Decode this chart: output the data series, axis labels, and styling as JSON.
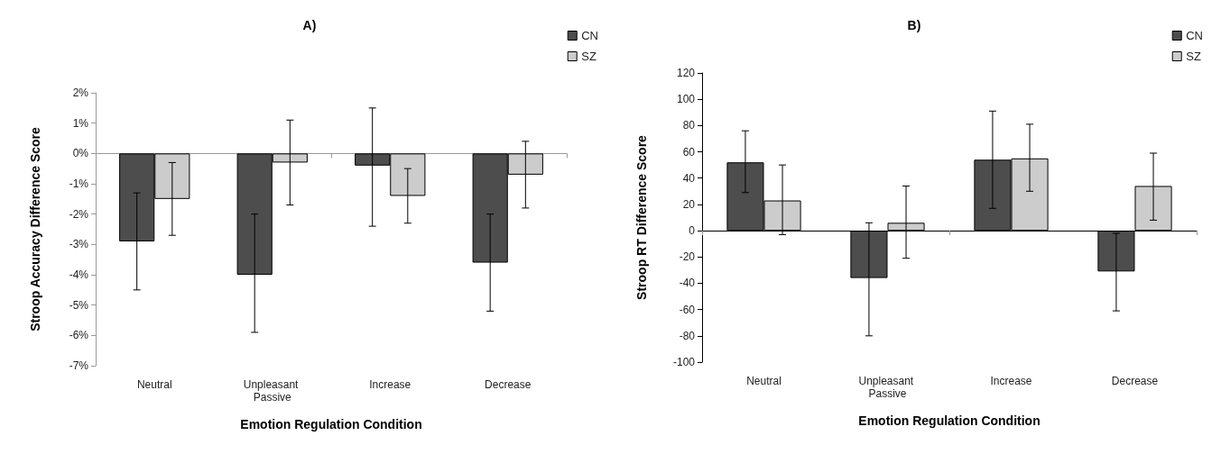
{
  "chart_data": [
    {
      "type": "bar",
      "title": "A)",
      "xlabel": "Emotion Regulation Condition",
      "ylabel": "Stroop Accuracy Difference Score",
      "categories": [
        "Neutral",
        "Unpleasant Passive",
        "Increase",
        "Decrease"
      ],
      "series": [
        {
          "name": "CN",
          "color": "#4d4d4d",
          "values": [
            -2.9,
            -4.0,
            -0.4,
            -3.6
          ],
          "errors": [
            [
              -4.5,
              -1.3
            ],
            [
              -5.9,
              -2.0
            ],
            [
              -2.4,
              1.5
            ],
            [
              -5.2,
              -2.0
            ]
          ]
        },
        {
          "name": "SZ",
          "color": "#cccccc",
          "values": [
            -1.5,
            -0.3,
            -1.4,
            -0.7
          ],
          "errors": [
            [
              -2.7,
              -0.3
            ],
            [
              -1.7,
              1.1
            ],
            [
              -2.3,
              -0.5
            ],
            [
              -1.8,
              0.4
            ]
          ]
        }
      ],
      "ylim": [
        -7,
        2
      ],
      "yticks": [
        {
          "value": -7,
          "label": "-7%"
        },
        {
          "value": -6,
          "label": "-6%"
        },
        {
          "value": -5,
          "label": "-5%"
        },
        {
          "value": -4,
          "label": "-4%"
        },
        {
          "value": -3,
          "label": "-3%"
        },
        {
          "value": -2,
          "label": "-2%"
        },
        {
          "value": -1,
          "label": "-1%"
        },
        {
          "value": 0,
          "label": "0%"
        },
        {
          "value": 1,
          "label": "1%"
        },
        {
          "value": 2,
          "label": "2%"
        }
      ],
      "legend": "top right"
    },
    {
      "type": "bar",
      "title": "B)",
      "xlabel": "Emotion Regulation Condition",
      "ylabel": "Stroop RT Difference Score",
      "categories": [
        "Neutral",
        "Unpleasant Passive",
        "Increase",
        "Decrease"
      ],
      "series": [
        {
          "name": "CN",
          "color": "#4d4d4d",
          "values": [
            52,
            -36,
            54,
            -31
          ],
          "errors": [
            [
              29,
              76
            ],
            [
              -80,
              6
            ],
            [
              17,
              91
            ],
            [
              -61,
              -2
            ]
          ]
        },
        {
          "name": "SZ",
          "color": "#cccccc",
          "values": [
            23,
            6,
            55,
            34
          ],
          "errors": [
            [
              -3,
              50
            ],
            [
              -21,
              34
            ],
            [
              30,
              81
            ],
            [
              8,
              59
            ]
          ]
        }
      ],
      "ylim": [
        -100,
        120
      ],
      "yticks": [
        -100,
        -80,
        -60,
        -40,
        -20,
        0,
        20,
        40,
        60,
        80,
        100,
        120
      ],
      "legend": "top right"
    }
  ]
}
